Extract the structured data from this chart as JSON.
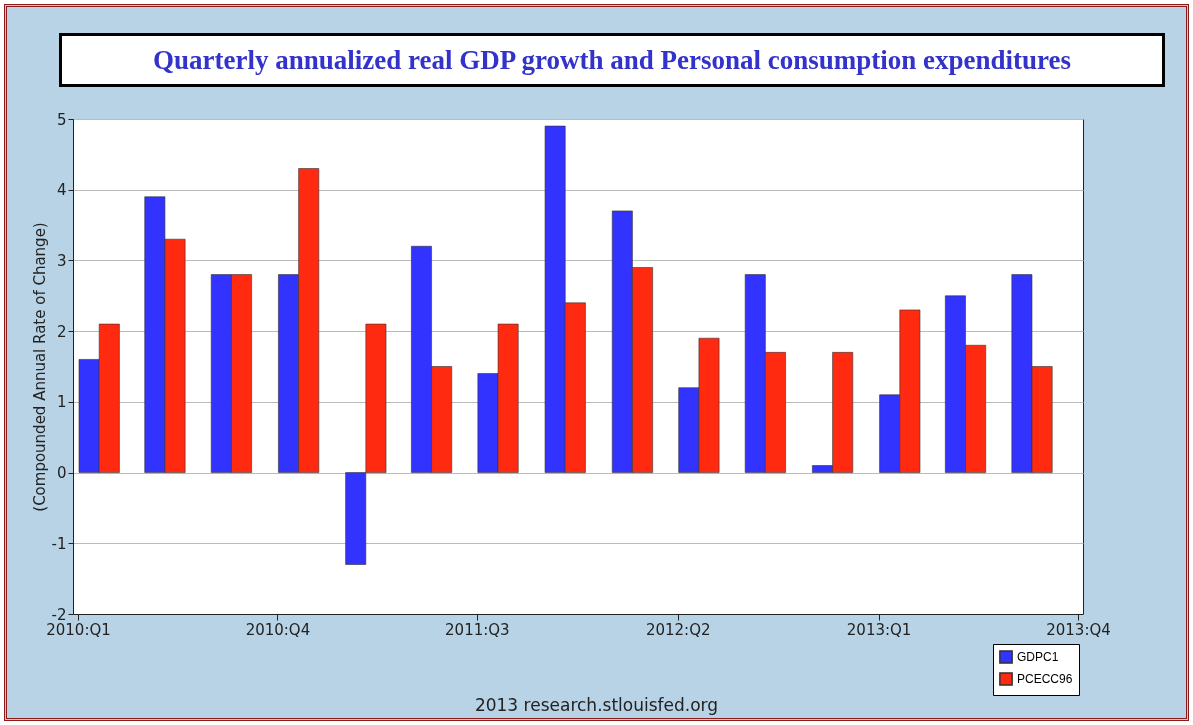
{
  "chart_data": {
    "type": "bar",
    "title": "Quarterly annualized real GDP growth and Personal consumption expenditures",
    "ylabel": "(Compounded Annual Rate of Change)",
    "x": [
      "2010-01",
      "2010-04",
      "2010-07",
      "2010-10",
      "2011-01",
      "2011-04",
      "2011-07",
      "2011-10",
      "2012-01",
      "2012-04",
      "2012-07",
      "2012-10",
      "2013-01",
      "2013-04",
      "2013-07"
    ],
    "xlim": [
      "2010-01",
      "2013-10"
    ],
    "xticks": [
      {
        "value": "2010-01",
        "label": "2010:Q1"
      },
      {
        "value": "2010-10",
        "label": "2010:Q4"
      },
      {
        "value": "2011-07",
        "label": "2011:Q3"
      },
      {
        "value": "2012-04",
        "label": "2012:Q2"
      },
      {
        "value": "2013-01",
        "label": "2013:Q1"
      },
      {
        "value": "2013-10",
        "label": "2013:Q4"
      }
    ],
    "series": [
      {
        "name": "GDPC1",
        "color": "#3333ff",
        "values": [
          1.6,
          3.9,
          2.8,
          2.8,
          -1.3,
          3.2,
          1.4,
          4.9,
          3.7,
          1.2,
          2.8,
          0.1,
          1.1,
          2.5,
          2.8
        ]
      },
      {
        "name": "PCECC96",
        "color": "#ff2a10",
        "values": [
          2.1,
          3.3,
          2.8,
          4.3,
          2.1,
          1.5,
          2.1,
          2.4,
          2.9,
          1.9,
          1.7,
          1.7,
          2.3,
          1.8,
          1.5
        ]
      }
    ],
    "ylim": [
      -2,
      5
    ],
    "yticks": [
      -2,
      -1,
      0,
      1,
      2,
      3,
      4,
      5
    ],
    "grid": "y",
    "legend": "bottom right",
    "annotations": [
      "2013 research.stlouisfed.org"
    ]
  }
}
